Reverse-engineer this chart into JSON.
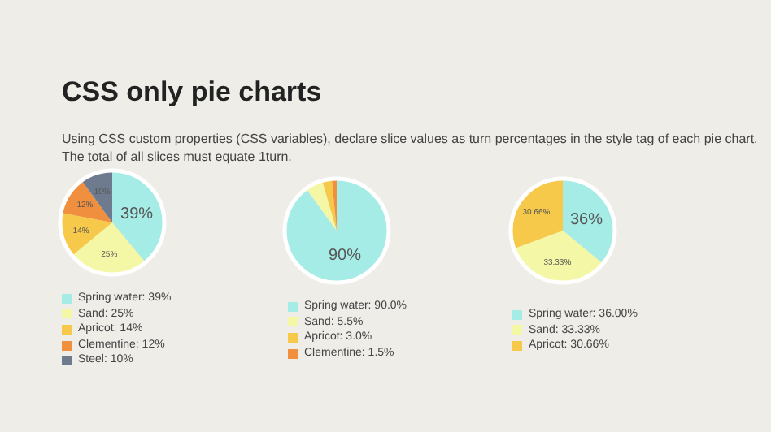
{
  "chart_data": [
    {
      "type": "other",
      "title": "CSS only pie charts",
      "annotations": [
        "Using CSS custom properties (CSS variables), declare slice values as turn percentages in the style tag of each pie chart.",
        "The total of all slices must equate 1turn."
      ]
    },
    {
      "type": "pie",
      "categories": [
        "Spring water: 39%",
        "Sand: 25%",
        "Apricot: 14%",
        "Clementine: 12%",
        "Steel: 10%"
      ],
      "values": [
        39,
        25,
        14,
        12,
        10
      ],
      "colors": [
        "#a6ece6",
        "#f4f7a6",
        "#f7c94a",
        "#f08f3e",
        "#6e7b8f"
      ],
      "value_labels": [
        "39%",
        "25%",
        "14%",
        "12%",
        "10%"
      ],
      "legend": "bottom"
    },
    {
      "type": "pie",
      "categories": [
        "Spring water: 90.0%",
        "Sand: 5.5%",
        "Apricot: 3.0%",
        "Clementine: 1.5%"
      ],
      "values": [
        90.0,
        5.5,
        3.0,
        1.5
      ],
      "colors": [
        "#a6ece6",
        "#f4f7a6",
        "#f7c94a",
        "#f08f3e"
      ],
      "value_labels": [
        "90%",
        null,
        null,
        null
      ],
      "legend": "bottom"
    },
    {
      "type": "pie",
      "categories": [
        "Spring water: 36.00%",
        "Sand: 33.33%",
        "Apricot: 30.66%"
      ],
      "values": [
        36.0,
        33.33,
        30.66
      ],
      "colors": [
        "#a6ece6",
        "#f4f7a6",
        "#f7c94a"
      ],
      "value_labels": [
        "36%",
        "33.33%",
        "30.66%"
      ],
      "legend": "bottom"
    }
  ]
}
